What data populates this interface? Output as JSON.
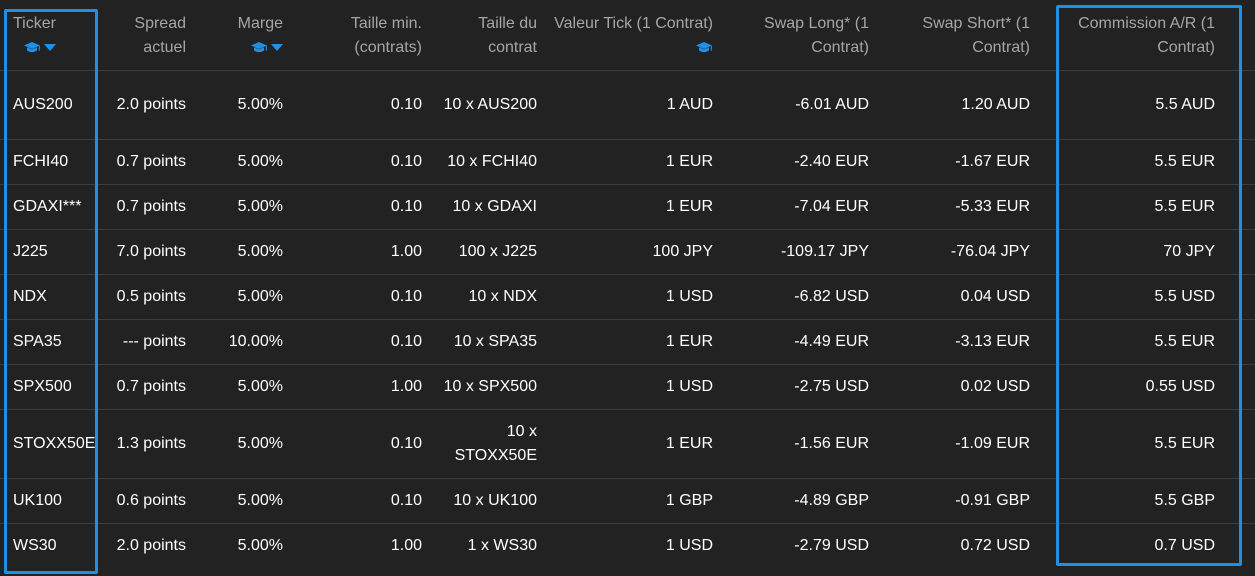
{
  "colors": {
    "background": "#222222",
    "text": "#ffffff",
    "header_text": "#a6a6a6",
    "row_divider": "#3c3c3c",
    "accent_blue": "#1e90e6"
  },
  "icons": {
    "graduation_cap": "graduation-cap-icon",
    "caret_down": "caret-down-icon"
  },
  "table": {
    "headers": {
      "ticker": "Ticker",
      "spread": "Spread actuel",
      "margin": "Marge",
      "min_size": "Taille min. (contrats)",
      "contract_size": "Taille du contrat",
      "tick_value": "Valeur Tick (1 Contrat)",
      "swap_long": "Swap Long* (1 Contrat)",
      "swap_short": "Swap Short* (1 Contrat)",
      "commission": "Commission A/R (1 Contrat)"
    },
    "rows": [
      {
        "ticker": "AUS200",
        "spread": "2.0 points",
        "margin": "5.00%",
        "min_size": "0.10",
        "contract_size": "10 x AUS200",
        "tick_value": "1 AUD",
        "swap_long": "-6.01 AUD",
        "swap_short": "1.20 AUD",
        "commission": "5.5 AUD"
      },
      {
        "ticker": "FCHI40",
        "spread": "0.7 points",
        "margin": "5.00%",
        "min_size": "0.10",
        "contract_size": "10 x FCHI40",
        "tick_value": "1 EUR",
        "swap_long": "-2.40 EUR",
        "swap_short": "-1.67 EUR",
        "commission": "5.5 EUR"
      },
      {
        "ticker": "GDAXI***",
        "spread": "0.7 points",
        "margin": "5.00%",
        "min_size": "0.10",
        "contract_size": "10 x GDAXI",
        "tick_value": "1 EUR",
        "swap_long": "-7.04 EUR",
        "swap_short": "-5.33 EUR",
        "commission": "5.5 EUR"
      },
      {
        "ticker": "J225",
        "spread": "7.0 points",
        "margin": "5.00%",
        "min_size": "1.00",
        "contract_size": "100 x J225",
        "tick_value": "100 JPY",
        "swap_long": "-109.17 JPY",
        "swap_short": "-76.04 JPY",
        "commission": "70 JPY"
      },
      {
        "ticker": "NDX",
        "spread": "0.5 points",
        "margin": "5.00%",
        "min_size": "0.10",
        "contract_size": "10 x NDX",
        "tick_value": "1 USD",
        "swap_long": "-6.82 USD",
        "swap_short": "0.04 USD",
        "commission": "5.5 USD"
      },
      {
        "ticker": "SPA35",
        "spread": "--- points",
        "margin": "10.00%",
        "min_size": "0.10",
        "contract_size": "10 x SPA35",
        "tick_value": "1 EUR",
        "swap_long": "-4.49 EUR",
        "swap_short": "-3.13 EUR",
        "commission": "5.5 EUR"
      },
      {
        "ticker": "SPX500",
        "spread": "0.7 points",
        "margin": "5.00%",
        "min_size": "1.00",
        "contract_size": "10 x SPX500",
        "tick_value": "1 USD",
        "swap_long": "-2.75 USD",
        "swap_short": "0.02 USD",
        "commission": "0.55 USD"
      },
      {
        "ticker": "STOXX50E",
        "spread": "1.3 points",
        "margin": "5.00%",
        "min_size": "0.10",
        "contract_size": "10 x STOXX50E",
        "tick_value": "1 EUR",
        "swap_long": "-1.56 EUR",
        "swap_short": "-1.09 EUR",
        "commission": "5.5 EUR"
      },
      {
        "ticker": "UK100",
        "spread": "0.6 points",
        "margin": "5.00%",
        "min_size": "0.10",
        "contract_size": "10 x UK100",
        "tick_value": "1 GBP",
        "swap_long": "-4.89 GBP",
        "swap_short": "-0.91 GBP",
        "commission": "5.5 GBP"
      },
      {
        "ticker": "WS30",
        "spread": "2.0 points",
        "margin": "5.00%",
        "min_size": "1.00",
        "contract_size": "1 x WS30",
        "tick_value": "1 USD",
        "swap_long": "-2.79 USD",
        "swap_short": "0.72 USD",
        "commission": "0.7 USD"
      }
    ]
  }
}
